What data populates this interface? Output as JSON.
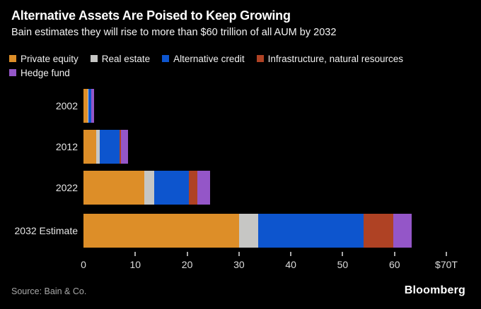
{
  "chart_data": {
    "type": "bar",
    "orientation": "horizontal-stacked",
    "title": "Alternative Assets Are Poised to Keep Growing",
    "subtitle": "Bain estimates they will rise to more than $60 trillion of all AUM by 2032",
    "unit": "trillions of USD (AUM)",
    "categories": [
      "2002",
      "2012",
      "2022",
      "2032 Estimate"
    ],
    "series": [
      {
        "name": "Private equity",
        "color": "#DD8E28",
        "values": [
          0.8,
          2.5,
          11.7,
          30.0
        ]
      },
      {
        "name": "Real estate",
        "color": "#C6C6C4",
        "values": [
          0.1,
          0.6,
          2.0,
          3.7
        ]
      },
      {
        "name": "Alternative credit",
        "color": "#0D55CE",
        "values": [
          0.6,
          3.8,
          6.7,
          20.4
        ]
      },
      {
        "name": "Infrastructure, natural resources",
        "color": "#AF4224",
        "values": [
          0.05,
          0.4,
          1.6,
          5.7
        ]
      },
      {
        "name": "Hedge fund",
        "color": "#9456C8",
        "values": [
          0.5,
          1.3,
          2.4,
          3.5
        ]
      }
    ],
    "totals": [
      2.05,
      8.6,
      24.4,
      63.3
    ],
    "legend_rows": [
      [
        0,
        1,
        2,
        3
      ],
      [
        4
      ]
    ],
    "x_axis": {
      "min": 0,
      "max": 70,
      "ticks": [
        {
          "value": 0,
          "label": "0",
          "mark": false
        },
        {
          "value": 10,
          "label": "10",
          "mark": true
        },
        {
          "value": 20,
          "label": "20",
          "mark": true
        },
        {
          "value": 30,
          "label": "30",
          "mark": true
        },
        {
          "value": 40,
          "label": "40",
          "mark": true
        },
        {
          "value": 50,
          "label": "50",
          "mark": true
        },
        {
          "value": 60,
          "label": "60",
          "mark": true
        },
        {
          "value": 70,
          "label": "$70T",
          "mark": true
        }
      ]
    },
    "grid": false,
    "legend_position": "top-left",
    "background_color": "#000000"
  },
  "footer": {
    "source": "Source: Bain & Co.",
    "brand": "Bloomberg"
  }
}
